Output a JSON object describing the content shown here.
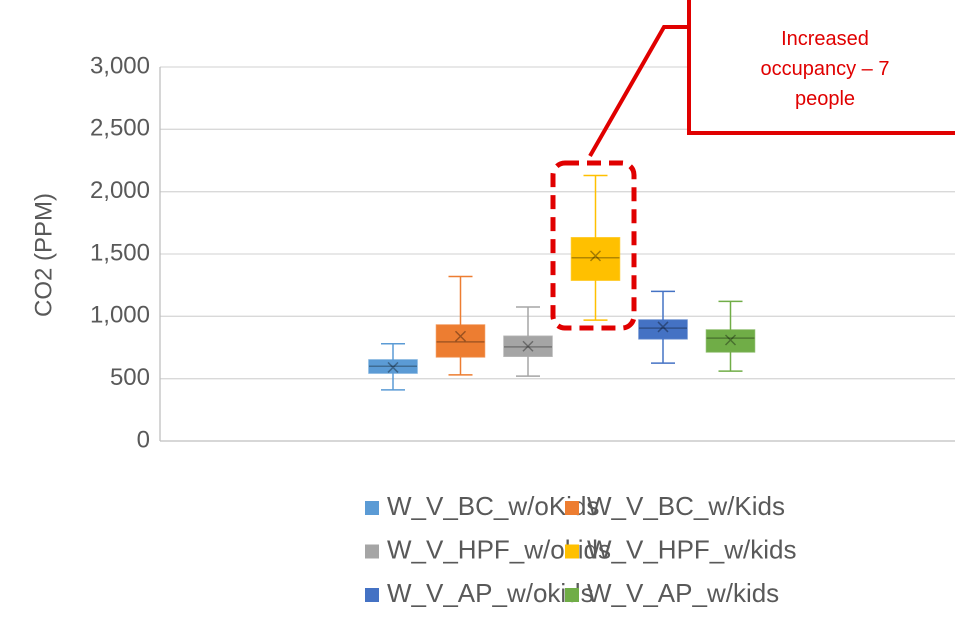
{
  "chart_data": {
    "type": "box",
    "y_label": "CO2 (PPM)",
    "annotation": "Increased occupancy – 7 people",
    "ylim": [
      0,
      3000
    ],
    "yticks": [
      0,
      500,
      {
        "value": 1000,
        "label": "1,000"
      },
      {
        "value": 1500,
        "label": "1,500"
      },
      {
        "value": 2000,
        "label": "2,000"
      },
      {
        "value": 2500,
        "label": "2,500"
      },
      {
        "value": 3000,
        "label": "3,000"
      }
    ],
    "grid": true,
    "series": [
      {
        "name": "W_V_BC_w/oKids",
        "color": "#5b9bd5",
        "min": 410,
        "q1": 545,
        "median": 600,
        "q3": 650,
        "max": 780,
        "mean": 590
      },
      {
        "name": "W_V_BC_w/Kids",
        "color": "#ed7d31",
        "min": 530,
        "q1": 675,
        "median": 795,
        "q3": 930,
        "max": 1320,
        "mean": 840
      },
      {
        "name": "W_V_HPF_w/okids",
        "color": "#a5a5a5",
        "min": 520,
        "q1": 680,
        "median": 755,
        "q3": 840,
        "max": 1075,
        "mean": 760
      },
      {
        "name": "W_V_HPF_w/kids",
        "color": "#ffc000",
        "min": 970,
        "q1": 1290,
        "median": 1470,
        "q3": 1630,
        "max": 2130,
        "mean": 1485
      },
      {
        "name": "W_V_AP_w/okids",
        "color": "#4472c4",
        "min": 625,
        "q1": 820,
        "median": 905,
        "q3": 970,
        "max": 1200,
        "mean": 915
      },
      {
        "name": "W_V_AP_w/kids",
        "color": "#70ad47",
        "min": 560,
        "q1": 715,
        "median": 825,
        "q3": 890,
        "max": 1120,
        "mean": 810
      }
    ]
  }
}
